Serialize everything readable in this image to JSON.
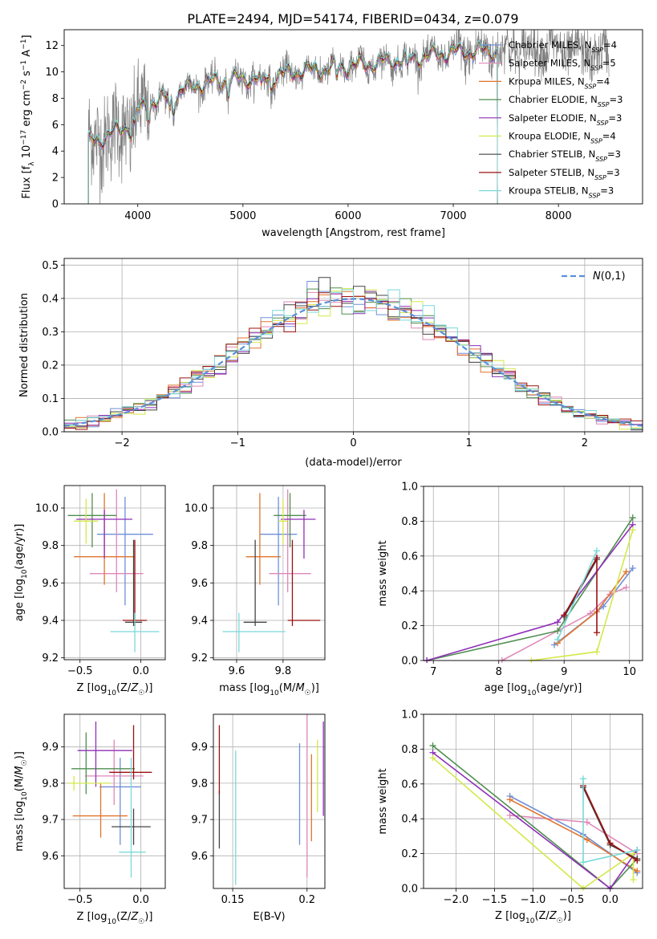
{
  "figure": {
    "title": "PLATE=2494, MJD=54174, FIBERID=0434, z=0.079"
  },
  "chart_data": [
    {
      "id": "spectrum",
      "type": "line",
      "title": "PLATE=2494, MJD=54174, FIBERID=0434, z=0.079",
      "xlabel": "wavelength [Angstrom, rest frame]",
      "ylabel": "Flux [f_λ 10^-17 erg cm^-2 s^-1 A^-1]",
      "xlim": [
        3300,
        8800
      ],
      "ylim": [
        0,
        13.2
      ],
      "xticks": [
        4000,
        5000,
        6000,
        7000,
        8000
      ],
      "yticks": [
        0,
        2,
        4,
        6,
        8,
        10,
        12
      ],
      "grid": false,
      "legend_position": "top-right",
      "x_start": 3530,
      "x_end_models": 7420,
      "x_end_observed": 8480,
      "envelope": [
        [
          3530,
          4.6
        ],
        [
          3700,
          5.1
        ],
        [
          3900,
          5.9
        ],
        [
          4000,
          7.0
        ],
        [
          4100,
          7.6
        ],
        [
          4300,
          8.0
        ],
        [
          4500,
          8.9
        ],
        [
          4700,
          9.2
        ],
        [
          5000,
          9.5
        ],
        [
          5200,
          9.5
        ],
        [
          5500,
          10.0
        ],
        [
          6000,
          10.4
        ],
        [
          6500,
          10.9
        ],
        [
          7000,
          11.5
        ],
        [
          7400,
          11.6
        ],
        [
          7800,
          11.8
        ],
        [
          8200,
          11.5
        ],
        [
          8480,
          11.3
        ]
      ],
      "series": [
        {
          "name": "Chabrier MILES, N_SSP=4",
          "color": "#6e8fd8"
        },
        {
          "name": "Salpeter MILES, N_SSP=5",
          "color": "#e087b8"
        },
        {
          "name": "Kroupa MILES, N_SSP=4",
          "color": "#e0742e"
        },
        {
          "name": "Chabrier ELODIE, N_SSP=3",
          "color": "#4f8f4f"
        },
        {
          "name": "Salpeter ELODIE, N_SSP=3",
          "color": "#8f2fb8"
        },
        {
          "name": "Kroupa ELODIE, N_SSP=4",
          "color": "#d4e84a"
        },
        {
          "name": "Chabrier STELIB, N_SSP=3",
          "color": "#444444"
        },
        {
          "name": "Salpeter STELIB, N_SSP=3",
          "color": "#9c1010"
        },
        {
          "name": "Kroupa STELIB, N_SSP=3",
          "color": "#7ad8d8"
        }
      ],
      "observed_color": "#808080"
    },
    {
      "id": "residuals",
      "type": "histogram",
      "xlabel": "(data-model)/error",
      "ylabel": "Normed distribution",
      "xlim": [
        -2.5,
        2.5
      ],
      "ylim": [
        0,
        0.52
      ],
      "xticks": [
        -2,
        -1,
        0,
        1,
        2
      ],
      "yticks": [
        0.0,
        0.1,
        0.2,
        0.3,
        0.4,
        0.5
      ],
      "grid": true,
      "legend_position": "top-right",
      "reference": {
        "name": "N(0,1)",
        "color": "#5b8fd8",
        "style": "dashed"
      },
      "bin_width": 0.1,
      "bin_start": -2.5
    },
    {
      "id": "age-vs-Z",
      "type": "errorbar",
      "xlabel": "Z [log10(Z/Z☉)]",
      "ylabel": "age [log10(age/yr)]",
      "xlim": [
        -0.63,
        0.2
      ],
      "ylim": [
        9.19,
        10.12
      ],
      "xticks": [
        -0.5,
        0.0
      ],
      "xtick_labels": [
        "−0.5",
        "0.0"
      ],
      "yticks": [
        9.2,
        9.4,
        9.6,
        9.8,
        10.0
      ],
      "grid": true,
      "points": [
        {
          "series": "Chabrier MILES",
          "x": -0.13,
          "xerr": [
            0.23,
            0.23
          ],
          "y": 9.86,
          "yerr": [
            0.38,
            0.2
          ],
          "color": "#6e8fd8"
        },
        {
          "series": "Salpeter MILES",
          "x": -0.2,
          "xerr": [
            0.22,
            0.22
          ],
          "y": 9.65,
          "yerr": [
            0.1,
            0.45
          ],
          "color": "#e087b8"
        },
        {
          "series": "Kroupa MILES",
          "x": -0.3,
          "xerr": [
            0.25,
            0.25
          ],
          "y": 9.74,
          "yerr": [
            0.15,
            0.34
          ],
          "color": "#e0742e"
        },
        {
          "series": "Chabrier ELODIE",
          "x": -0.4,
          "xerr": [
            0.2,
            0.2
          ],
          "y": 9.96,
          "yerr": [
            0.17,
            0.12
          ],
          "color": "#4f8f4f"
        },
        {
          "series": "Salpeter ELODIE",
          "x": -0.3,
          "xerr": [
            0.23,
            0.23
          ],
          "y": 9.94,
          "yerr": [
            0.21,
            0.05
          ],
          "color": "#8f2fb8"
        },
        {
          "series": "Kroupa ELODIE",
          "x": -0.45,
          "xerr": [
            0.1,
            0.1
          ],
          "y": 9.93,
          "yerr": [
            0.12,
            0.12
          ],
          "color": "#d4e84a"
        },
        {
          "series": "Chabrier STELIB",
          "x": -0.06,
          "xerr": [
            0.07,
            0.07
          ],
          "y": 9.39,
          "yerr": [
            0.02,
            0.44
          ],
          "color": "#444444"
        },
        {
          "series": "Salpeter STELIB",
          "x": -0.05,
          "xerr": [
            0.1,
            0.1
          ],
          "y": 9.4,
          "yerr": [
            0.03,
            0.43
          ],
          "color": "#9c1010"
        },
        {
          "series": "Kroupa STELIB",
          "x": -0.05,
          "xerr": [
            0.2,
            0.2
          ],
          "y": 9.34,
          "yerr": [
            0.11,
            0.1
          ],
          "color": "#7ad8d8"
        }
      ]
    },
    {
      "id": "age-vs-mass",
      "type": "errorbar",
      "xlabel": "mass [log10(M/M☉)]",
      "xlim": [
        9.5,
        9.98
      ],
      "ylim": [
        9.19,
        10.12
      ],
      "xticks": [
        9.6,
        9.8
      ],
      "yticks": [
        9.2,
        9.4,
        9.6,
        9.8,
        10.0
      ],
      "grid": true,
      "points": [
        {
          "series": "Chabrier MILES",
          "x": 9.78,
          "xerr": [
            0.08,
            0.08
          ],
          "y": 9.86,
          "yerr": [
            0.38,
            0.2
          ],
          "color": "#6e8fd8"
        },
        {
          "series": "Salpeter MILES",
          "x": 9.82,
          "xerr": [
            0.08,
            0.1
          ],
          "y": 9.65,
          "yerr": [
            0.1,
            0.45
          ],
          "color": "#e087b8"
        },
        {
          "series": "Kroupa MILES",
          "x": 9.7,
          "xerr": [
            0.06,
            0.09
          ],
          "y": 9.74,
          "yerr": [
            0.15,
            0.34
          ],
          "color": "#e0742e"
        },
        {
          "series": "Chabrier ELODIE",
          "x": 9.83,
          "xerr": [
            0.07,
            0.07
          ],
          "y": 9.96,
          "yerr": [
            0.17,
            0.12
          ],
          "color": "#4f8f4f"
        },
        {
          "series": "Salpeter ELODIE",
          "x": 9.89,
          "xerr": [
            0.1,
            0.05
          ],
          "y": 9.94,
          "yerr": [
            0.21,
            0.05
          ],
          "color": "#8f2fb8"
        },
        {
          "series": "Kroupa ELODIE",
          "x": 9.8,
          "xerr": [
            0.02,
            0.02
          ],
          "y": 9.93,
          "yerr": [
            0.12,
            0.12
          ],
          "color": "#d4e84a"
        },
        {
          "series": "Chabrier STELIB",
          "x": 9.68,
          "xerr": [
            0.05,
            0.05
          ],
          "y": 9.39,
          "yerr": [
            0.02,
            0.44
          ],
          "color": "#444444"
        },
        {
          "series": "Salpeter STELIB",
          "x": 9.84,
          "xerr": [
            0.02,
            0.12
          ],
          "y": 9.4,
          "yerr": [
            0.03,
            0.43
          ],
          "color": "#9c1010"
        },
        {
          "series": "Kroupa STELIB",
          "x": 9.61,
          "xerr": [
            0.07,
            0.2
          ],
          "y": 9.34,
          "yerr": [
            0.11,
            0.1
          ],
          "color": "#7ad8d8"
        }
      ]
    },
    {
      "id": "weight-vs-age",
      "type": "line",
      "xlabel": "age [log10(age/yr)]",
      "ylabel": "mass weight",
      "xlim": [
        6.85,
        10.2
      ],
      "ylim": [
        0,
        1.0
      ],
      "xticks": [
        7,
        8,
        9,
        10
      ],
      "yticks": [
        0.0,
        0.2,
        0.4,
        0.6,
        0.8,
        1.0
      ],
      "grid": true,
      "series": [
        {
          "name": "Chabrier MILES",
          "color": "#6e8fd8",
          "x": [
            8.85,
            9.6,
            10.05
          ],
          "y": [
            0.09,
            0.31,
            0.53
          ]
        },
        {
          "name": "Salpeter MILES",
          "color": "#e087b8",
          "x": [
            8.05,
            9.4,
            9.7,
            9.95
          ],
          "y": [
            0.0,
            0.27,
            0.38,
            0.42
          ]
        },
        {
          "name": "Kroupa MILES",
          "color": "#e0742e",
          "x": [
            8.9,
            9.5,
            9.95
          ],
          "y": [
            0.1,
            0.28,
            0.51
          ]
        },
        {
          "name": "Chabrier ELODIE",
          "color": "#4f8f4f",
          "x": [
            6.9,
            8.9,
            10.05
          ],
          "y": [
            0.0,
            0.17,
            0.82
          ]
        },
        {
          "name": "Salpeter ELODIE",
          "color": "#8f2fb8",
          "x": [
            6.9,
            8.9,
            10.05
          ],
          "y": [
            0.0,
            0.22,
            0.78
          ]
        },
        {
          "name": "Kroupa ELODIE",
          "color": "#d4e84a",
          "x": [
            8.5,
            9.5,
            10.05
          ],
          "y": [
            0.0,
            0.05,
            0.75
          ]
        },
        {
          "name": "Chabrier STELIB",
          "color": "#444444",
          "x": [
            9.0,
            9.5
          ],
          "y": [
            0.25,
            0.58
          ]
        },
        {
          "name": "Salpeter STELIB",
          "color": "#9c1010",
          "x": [
            9.0,
            9.5,
            9.5
          ],
          "y": [
            0.26,
            0.59,
            0.16
          ]
        },
        {
          "name": "Kroupa STELIB",
          "color": "#7ad8d8",
          "x": [
            8.9,
            9.5
          ],
          "y": [
            0.12,
            0.63
          ]
        }
      ]
    },
    {
      "id": "mass-vs-Z",
      "type": "errorbar",
      "xlabel": "Z [log10(Z/Z☉)]",
      "ylabel": "mass [log10(M/M☉)]",
      "xlim": [
        -0.63,
        0.2
      ],
      "ylim": [
        9.51,
        9.99
      ],
      "xticks": [
        -0.5,
        0.0
      ],
      "xtick_labels": [
        "−0.5",
        "0.0"
      ],
      "yticks": [
        9.6,
        9.7,
        9.8,
        9.9
      ],
      "grid": true,
      "points": [
        {
          "series": "Chabrier MILES",
          "x": -0.17,
          "xerr": [
            0.17,
            0.17
          ],
          "y": 9.79,
          "yerr": [
            0.16,
            0.08
          ],
          "color": "#6e8fd8"
        },
        {
          "series": "Salpeter MILES",
          "x": -0.22,
          "xerr": [
            0.24,
            0.24
          ],
          "y": 9.82,
          "yerr": [
            0.08,
            0.1
          ],
          "color": "#e087b8"
        },
        {
          "series": "Kroupa MILES",
          "x": -0.33,
          "xerr": [
            0.23,
            0.22
          ],
          "y": 9.71,
          "yerr": [
            0.06,
            0.09
          ],
          "color": "#e0742e"
        },
        {
          "series": "Chabrier ELODIE",
          "x": -0.45,
          "xerr": [
            0.12,
            0.4
          ],
          "y": 9.84,
          "yerr": [
            0.07,
            0.1
          ],
          "color": "#4f8f4f"
        },
        {
          "series": "Salpeter ELODIE",
          "x": -0.37,
          "xerr": [
            0.15,
            0.3
          ],
          "y": 9.89,
          "yerr": [
            0.1,
            0.08
          ],
          "color": "#8f2fb8"
        },
        {
          "series": "Kroupa ELODIE",
          "x": -0.55,
          "xerr": [
            0.05,
            0.3
          ],
          "y": 9.8,
          "yerr": [
            0.02,
            0.02
          ],
          "color": "#d4e84a"
        },
        {
          "series": "Chabrier STELIB",
          "x": -0.06,
          "xerr": [
            0.18,
            0.14
          ],
          "y": 9.68,
          "yerr": [
            0.05,
            0.05
          ],
          "color": "#444444"
        },
        {
          "series": "Salpeter STELIB",
          "x": -0.06,
          "xerr": [
            0.2,
            0.15
          ],
          "y": 9.83,
          "yerr": [
            0.02,
            0.13
          ],
          "color": "#9c1010"
        },
        {
          "series": "Kroupa STELIB",
          "x": -0.08,
          "xerr": [
            0.1,
            0.12
          ],
          "y": 9.61,
          "yerr": [
            0.07,
            0.26
          ],
          "color": "#7ad8d8"
        }
      ]
    },
    {
      "id": "mass-vs-ebv",
      "type": "errorbar",
      "xlabel": "E(B-V)",
      "xlim": [
        0.137,
        0.212
      ],
      "ylim": [
        9.51,
        9.99
      ],
      "xticks": [
        0.15,
        0.2
      ],
      "yticks": [
        9.6,
        9.7,
        9.8,
        9.9
      ],
      "grid": true,
      "points": [
        {
          "series": "Chabrier MILES",
          "x": 0.195,
          "xerr": [
            0,
            0
          ],
          "y": 9.79,
          "yerr": [
            0.16,
            0.12
          ],
          "color": "#6e8fd8"
        },
        {
          "series": "Salpeter MILES",
          "x": 0.2,
          "xerr": [
            0,
            0
          ],
          "y": 9.82,
          "yerr": [
            0.28,
            0.17
          ],
          "color": "#e087b8"
        },
        {
          "series": "Kroupa MILES",
          "x": 0.203,
          "xerr": [
            0,
            0
          ],
          "y": 9.71,
          "yerr": [
            0.07,
            0.17
          ],
          "color": "#e0742e"
        },
        {
          "series": "Salpeter ELODIE",
          "x": 0.211,
          "xerr": [
            0,
            0
          ],
          "y": 9.89,
          "yerr": [
            0.18,
            0.08
          ],
          "color": "#8f2fb8"
        },
        {
          "series": "Kroupa ELODIE",
          "x": 0.207,
          "xerr": [
            0,
            0
          ],
          "y": 9.82,
          "yerr": [
            0.1,
            0.1
          ],
          "color": "#d4e84a"
        },
        {
          "series": "Chabrier STELIB",
          "x": 0.141,
          "xerr": [
            0,
            0
          ],
          "y": 9.68,
          "yerr": [
            0.06,
            0.1
          ],
          "color": "#444444"
        },
        {
          "series": "Salpeter STELIB",
          "x": 0.141,
          "xerr": [
            0,
            0
          ],
          "y": 9.83,
          "yerr": [
            0.06,
            0.13
          ],
          "color": "#9c1010"
        },
        {
          "series": "Kroupa STELIB",
          "x": 0.152,
          "xerr": [
            0,
            0
          ],
          "y": 9.74,
          "yerr": [
            0.22,
            0.15
          ],
          "color": "#7ad8d8"
        }
      ]
    },
    {
      "id": "weight-vs-Z",
      "type": "line",
      "xlabel": "Z [log10(Z/Z☉)]",
      "ylabel": "mass weight",
      "xlim": [
        -2.42,
        0.42
      ],
      "ylim": [
        0,
        1.0
      ],
      "xticks": [
        -2.0,
        -1.5,
        -1.0,
        -0.5,
        0.0
      ],
      "xtick_labels": [
        "−2.0",
        "−1.5",
        "−1.0",
        "−0.5",
        "0.0"
      ],
      "yticks": [
        0.0,
        0.2,
        0.4,
        0.6,
        0.8,
        1.0
      ],
      "grid": true,
      "series": [
        {
          "name": "Chabrier MILES",
          "color": "#6e8fd8",
          "x": [
            -1.3,
            -0.35,
            0.35
          ],
          "y": [
            0.53,
            0.31,
            0.09
          ]
        },
        {
          "name": "Salpeter MILES",
          "color": "#e087b8",
          "x": [
            -1.3,
            -0.3,
            0.35
          ],
          "y": [
            0.42,
            0.38,
            0.2
          ]
        },
        {
          "name": "Kroupa MILES",
          "color": "#e0742e",
          "x": [
            -1.3,
            -0.3,
            0.35
          ],
          "y": [
            0.51,
            0.28,
            0.1
          ]
        },
        {
          "name": "Chabrier ELODIE",
          "color": "#4f8f4f",
          "x": [
            -2.3,
            0.0,
            0.35
          ],
          "y": [
            0.82,
            0.0,
            0.17
          ]
        },
        {
          "name": "Salpeter ELODIE",
          "color": "#8f2fb8",
          "x": [
            -2.3,
            0.0,
            0.35
          ],
          "y": [
            0.78,
            0.0,
            0.22
          ]
        },
        {
          "name": "Kroupa ELODIE",
          "color": "#d4e84a",
          "x": [
            -2.3,
            -0.35,
            0.3,
            0.3
          ],
          "y": [
            0.75,
            0.0,
            0.2,
            0.05
          ]
        },
        {
          "name": "Chabrier STELIB",
          "color": "#444444",
          "x": [
            -0.35,
            0.0,
            0.35
          ],
          "y": [
            0.58,
            0.25,
            0.17
          ]
        },
        {
          "name": "Salpeter STELIB",
          "color": "#9c1010",
          "x": [
            -0.35,
            0.0,
            0.35
          ],
          "y": [
            0.59,
            0.26,
            0.16
          ]
        },
        {
          "name": "Kroupa STELIB",
          "color": "#7ad8d8",
          "x": [
            -0.35,
            -0.35,
            0.35
          ],
          "y": [
            0.63,
            0.15,
            0.22
          ]
        }
      ]
    }
  ]
}
